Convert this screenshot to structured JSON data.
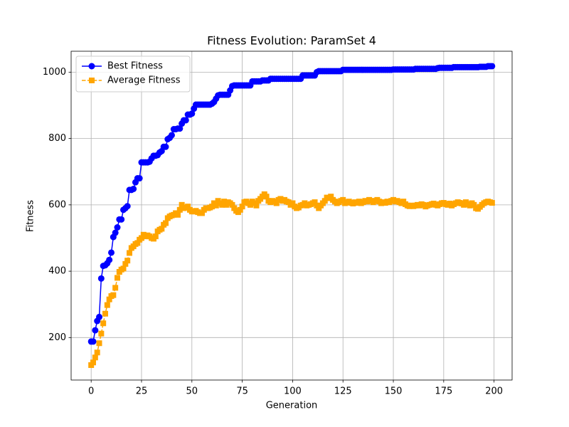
{
  "chart_data": {
    "type": "line",
    "title": "Fitness Evolution: ParamSet 4",
    "x_label": "Generation",
    "y_label": "Fitness",
    "x": [
      0,
      1,
      2,
      3,
      4,
      5,
      6,
      7,
      8,
      9,
      10,
      11,
      12,
      13,
      14,
      15,
      16,
      17,
      18,
      19,
      20,
      21,
      22,
      23,
      24,
      25,
      26,
      27,
      28,
      29,
      30,
      31,
      32,
      33,
      34,
      35,
      36,
      37,
      38,
      39,
      40,
      41,
      42,
      43,
      44,
      45,
      46,
      47,
      48,
      49,
      50,
      51,
      52,
      53,
      54,
      55,
      56,
      57,
      58,
      59,
      60,
      61,
      62,
      63,
      64,
      65,
      66,
      67,
      68,
      69,
      70,
      71,
      72,
      73,
      74,
      75,
      76,
      77,
      78,
      79,
      80,
      81,
      82,
      83,
      84,
      85,
      86,
      87,
      88,
      89,
      90,
      91,
      92,
      93,
      94,
      95,
      96,
      97,
      98,
      99,
      100,
      101,
      102,
      103,
      104,
      105,
      106,
      107,
      108,
      109,
      110,
      111,
      112,
      113,
      114,
      115,
      116,
      117,
      118,
      119,
      120,
      121,
      122,
      123,
      124,
      125,
      126,
      127,
      128,
      129,
      130,
      131,
      132,
      133,
      134,
      135,
      136,
      137,
      138,
      139,
      140,
      141,
      142,
      143,
      144,
      145,
      146,
      147,
      148,
      149,
      150,
      151,
      152,
      153,
      154,
      155,
      156,
      157,
      158,
      159,
      160,
      161,
      162,
      163,
      164,
      165,
      166,
      167,
      168,
      169,
      170,
      171,
      172,
      173,
      174,
      175,
      176,
      177,
      178,
      179,
      180,
      181,
      182,
      183,
      184,
      185,
      186,
      187,
      188,
      189,
      190,
      191,
      192,
      193,
      194,
      195,
      196,
      197,
      198,
      199
    ],
    "series": [
      {
        "name": "Best Fitness",
        "color": "#0000ff",
        "marker": "circle",
        "linestyle": "solid",
        "values": [
          188,
          188,
          222,
          250,
          262,
          378,
          416,
          418,
          424,
          434,
          456,
          503,
          516,
          532,
          556,
          556,
          585,
          590,
          596,
          645,
          645,
          648,
          668,
          680,
          680,
          728,
          728,
          728,
          728,
          730,
          740,
          748,
          748,
          750,
          758,
          762,
          775,
          775,
          798,
          802,
          810,
          828,
          828,
          830,
          830,
          845,
          855,
          855,
          872,
          872,
          875,
          890,
          902,
          902,
          902,
          902,
          902,
          902,
          902,
          902,
          905,
          910,
          920,
          930,
          932,
          932,
          932,
          932,
          932,
          945,
          958,
          960,
          960,
          960,
          960,
          960,
          960,
          960,
          960,
          960,
          972,
          972,
          972,
          972,
          972,
          975,
          975,
          975,
          975,
          980,
          980,
          980,
          980,
          980,
          980,
          980,
          980,
          980,
          980,
          980,
          980,
          980,
          980,
          980,
          980,
          990,
          990,
          990,
          990,
          990,
          990,
          990,
          1000,
          1003,
          1003,
          1003,
          1003,
          1003,
          1003,
          1003,
          1003,
          1003,
          1003,
          1003,
          1003,
          1007,
          1007,
          1007,
          1007,
          1007,
          1007,
          1007,
          1007,
          1007,
          1007,
          1007,
          1007,
          1007,
          1007,
          1007,
          1007,
          1007,
          1007,
          1007,
          1007,
          1007,
          1007,
          1007,
          1007,
          1007,
          1008,
          1008,
          1008,
          1008,
          1008,
          1008,
          1008,
          1008,
          1008,
          1008,
          1008,
          1010,
          1010,
          1010,
          1010,
          1010,
          1010,
          1010,
          1010,
          1010,
          1010,
          1010,
          1012,
          1013,
          1013,
          1013,
          1013,
          1013,
          1013,
          1013,
          1015,
          1015,
          1015,
          1015,
          1015,
          1015,
          1015,
          1015,
          1015,
          1015,
          1015,
          1015,
          1015,
          1016,
          1016,
          1016,
          1016,
          1018,
          1018,
          1018
        ]
      },
      {
        "name": "Average Fitness",
        "color": "#ffa500",
        "marker": "square",
        "linestyle": "dashed",
        "values": [
          117,
          125,
          140,
          155,
          183,
          212,
          243,
          272,
          298,
          315,
          325,
          328,
          350,
          380,
          398,
          405,
          408,
          422,
          432,
          455,
          470,
          475,
          482,
          485,
          495,
          500,
          510,
          505,
          508,
          505,
          500,
          498,
          505,
          520,
          525,
          528,
          540,
          545,
          560,
          565,
          568,
          570,
          575,
          570,
          585,
          600,
          590,
          592,
          595,
          585,
          580,
          580,
          582,
          578,
          575,
          575,
          585,
          590,
          590,
          592,
          595,
          605,
          598,
          612,
          605,
          600,
          610,
          600,
          608,
          605,
          600,
          590,
          582,
          578,
          585,
          595,
          608,
          610,
          605,
          600,
          610,
          605,
          598,
          612,
          618,
          625,
          632,
          625,
          612,
          608,
          612,
          610,
          605,
          615,
          618,
          612,
          615,
          610,
          608,
          600,
          605,
          595,
          590,
          592,
          598,
          600,
          605,
          598,
          600,
          602,
          605,
          608,
          598,
          590,
          598,
          605,
          612,
          622,
          620,
          625,
          615,
          610,
          605,
          608,
          612,
          615,
          605,
          608,
          610,
          606,
          604,
          608,
          606,
          610,
          605,
          608,
          612,
          610,
          615,
          612,
          608,
          612,
          615,
          610,
          605,
          608,
          606,
          610,
          608,
          612,
          615,
          610,
          612,
          608,
          605,
          610,
          602,
          598,
          596,
          598,
          596,
          598,
          600,
          598,
          602,
          600,
          595,
          598,
          600,
          602,
          604,
          600,
          598,
          602,
          605,
          606,
          602,
          600,
          604,
          598,
          602,
          605,
          608,
          606,
          604,
          600,
          608,
          602,
          598,
          605,
          600,
          590,
          588,
          594,
          600,
          605,
          608,
          610,
          608,
          606
        ]
      }
    ],
    "xlim": [
      -9.95,
      208.95
    ],
    "ylim": [
      72,
      1063
    ],
    "xticks": [
      0,
      25,
      50,
      75,
      100,
      125,
      150,
      175,
      200
    ],
    "yticks": [
      200,
      400,
      600,
      800,
      1000
    ],
    "grid": true,
    "legend": "upper left"
  }
}
